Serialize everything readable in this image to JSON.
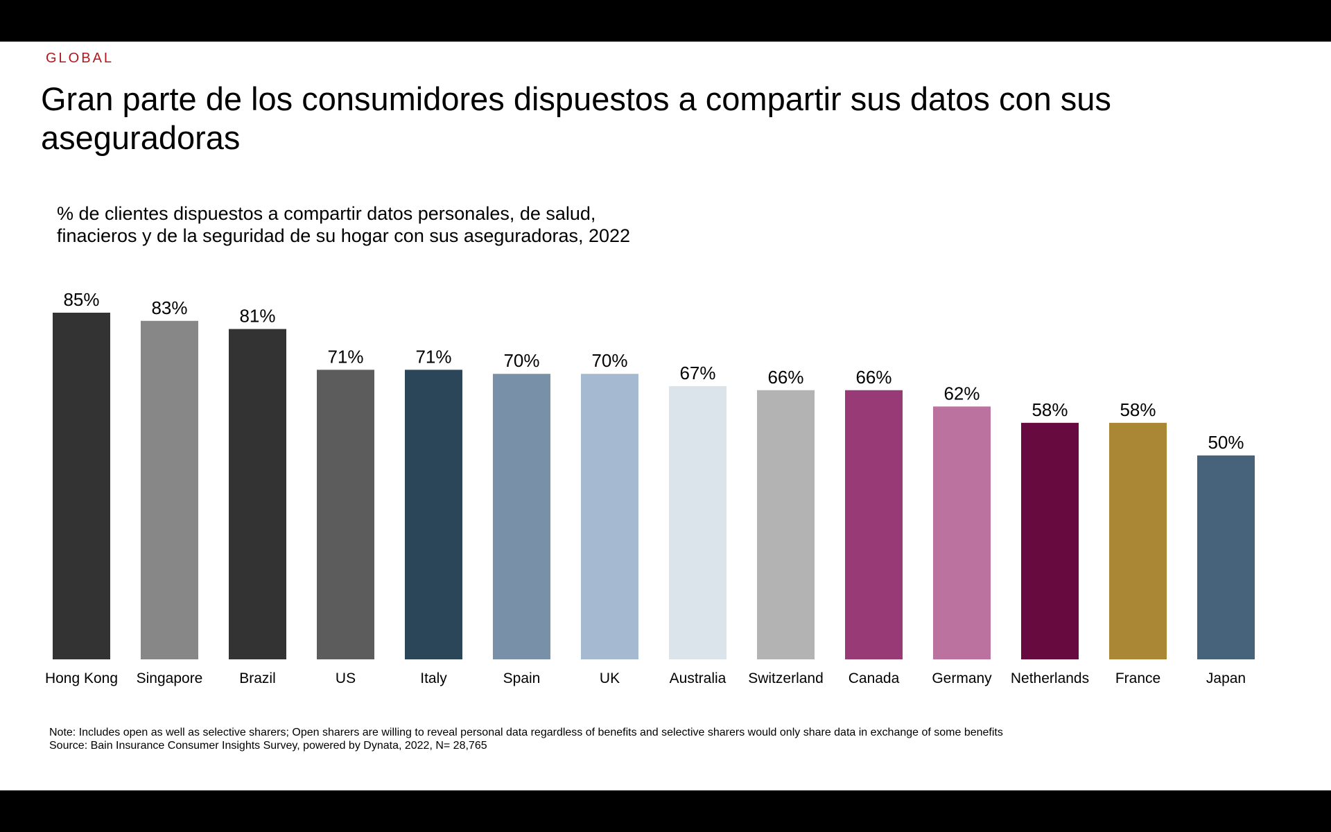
{
  "kicker": "GLOBAL",
  "title": "Gran parte de los consumidores dispuestos a compartir sus datos con sus aseguradoras",
  "subtitle_lines": [
    "% de clientes dispuestos a compartir datos personales, de salud,",
    "finacieros y de la seguridad de su hogar con sus aseguradoras, 2022"
  ],
  "footnotes": {
    "note": "Note: Includes open as well as selective sharers; Open sharers are willing to reveal personal data regardless of benefits and selective sharers would only share data in exchange of some benefits",
    "source": "Source: Bain Insurance Consumer Insights Survey, powered by Dynata, 2022, N= 28,765"
  },
  "chart_data": {
    "type": "bar",
    "title": "% de clientes dispuestos a compartir datos personales, de salud, finacieros y de la seguridad de su hogar con sus aseguradoras, 2022",
    "xlabel": "",
    "ylabel": "",
    "ylim": [
      0,
      100
    ],
    "grid": false,
    "legend": "none",
    "value_suffix": "%",
    "categories": [
      "Hong Kong",
      "Singapore",
      "Brazil",
      "US",
      "Italy",
      "Spain",
      "UK",
      "Australia",
      "Switzerland",
      "Canada",
      "Germany",
      "Netherlands",
      "France",
      "Japan"
    ],
    "values": [
      85,
      83,
      81,
      71,
      71,
      70,
      70,
      67,
      66,
      66,
      62,
      58,
      58,
      50
    ],
    "colors": [
      "#333333",
      "#878787",
      "#333333",
      "#5c5c5c",
      "#2c4659",
      "#7890a8",
      "#a5bad0",
      "#dce4eb",
      "#b3b3b3",
      "#973a75",
      "#bb729f",
      "#660a3f",
      "#aa8734",
      "#46637b"
    ]
  }
}
